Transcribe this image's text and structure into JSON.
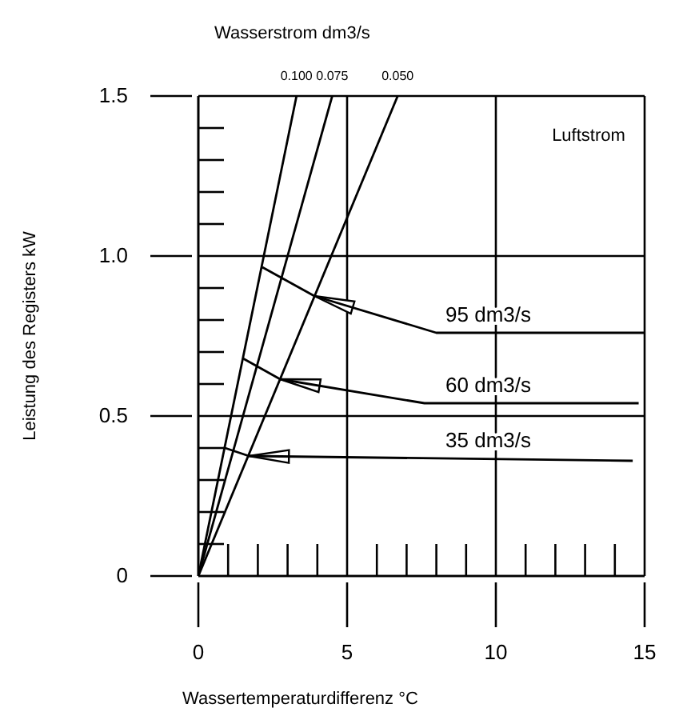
{
  "chart_data": {
    "type": "line",
    "title": "Wasserstrom dm3/s",
    "xlabel": "Wassertemperaturdifferenz °C",
    "ylabel": "Leistung des Registers  kW",
    "annotations": [
      "Luftstrom"
    ],
    "xlim": [
      0,
      15
    ],
    "ylim": [
      0,
      1.5
    ],
    "xticks": [
      0,
      5,
      10,
      15
    ],
    "yticks": [
      0,
      0.5,
      {
        "value": 1,
        "label": "1.0"
      },
      1.5
    ],
    "grid": true,
    "legend": false,
    "marker": "none",
    "line_style": "solid",
    "series": [
      {
        "name": "0.100",
        "color": "#000000",
        "x": [
          0,
          3.3
        ],
        "values": [
          0,
          1.5
        ]
      },
      {
        "name": "0.075",
        "color": "#000000",
        "x": [
          0,
          4.5
        ],
        "values": [
          0,
          1.5
        ]
      },
      {
        "name": "0.050",
        "color": "#000000",
        "x": [
          0,
          6.7
        ],
        "values": [
          0,
          1.5
        ]
      },
      {
        "name": "95 dm3/s",
        "color": "#000000",
        "x": [
          2.15,
          3.9,
          8.0,
          15
        ],
        "values": [
          0.965,
          0.875,
          0.76,
          0.76
        ]
      },
      {
        "name": "60 dm3/s",
        "color": "#000000",
        "x": [
          1.5,
          2.75,
          7.6,
          14.8
        ],
        "values": [
          0.68,
          0.615,
          0.54,
          0.54
        ]
      },
      {
        "name": "35 dm3/s",
        "color": "#000000",
        "x": [
          0.9,
          1.7,
          14.6
        ],
        "values": [
          0.4,
          0.375,
          0.36
        ]
      }
    ]
  }
}
